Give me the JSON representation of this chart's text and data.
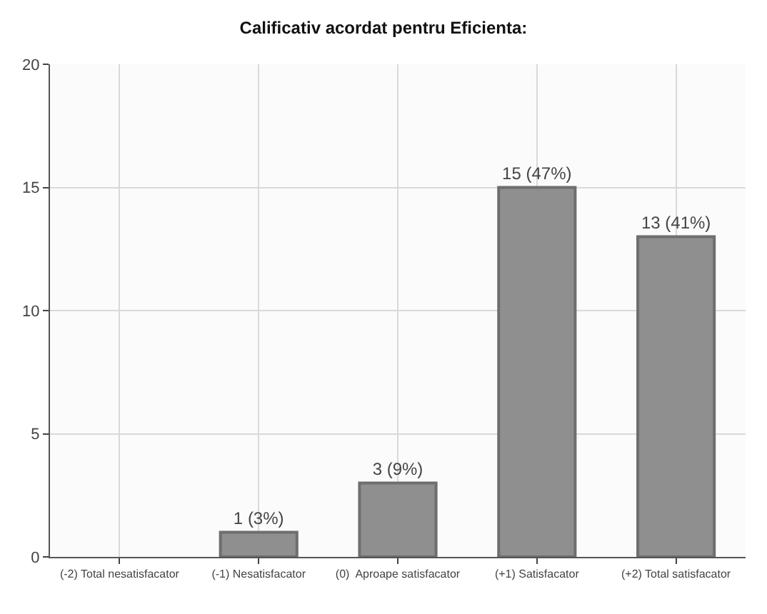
{
  "chart_data": {
    "type": "bar",
    "title": "Calificativ acordat pentru Eficienta:",
    "categories": [
      "(-2) Total nesatisfacator",
      "(-1) Nesatisfacator",
      "(0)  Aproape satisfacator",
      "(+1) Satisfacator",
      "(+2) Total satisfacator"
    ],
    "values": [
      0,
      1,
      3,
      15,
      13
    ],
    "value_labels": [
      null,
      "1 (3%)",
      "3 (9%)",
      "15 (47%)",
      "13 (41%)"
    ],
    "color": "#8f8f8f",
    "ylim": [
      0,
      20
    ],
    "yticks": [
      0,
      5,
      10,
      15,
      20
    ],
    "grid": true
  }
}
